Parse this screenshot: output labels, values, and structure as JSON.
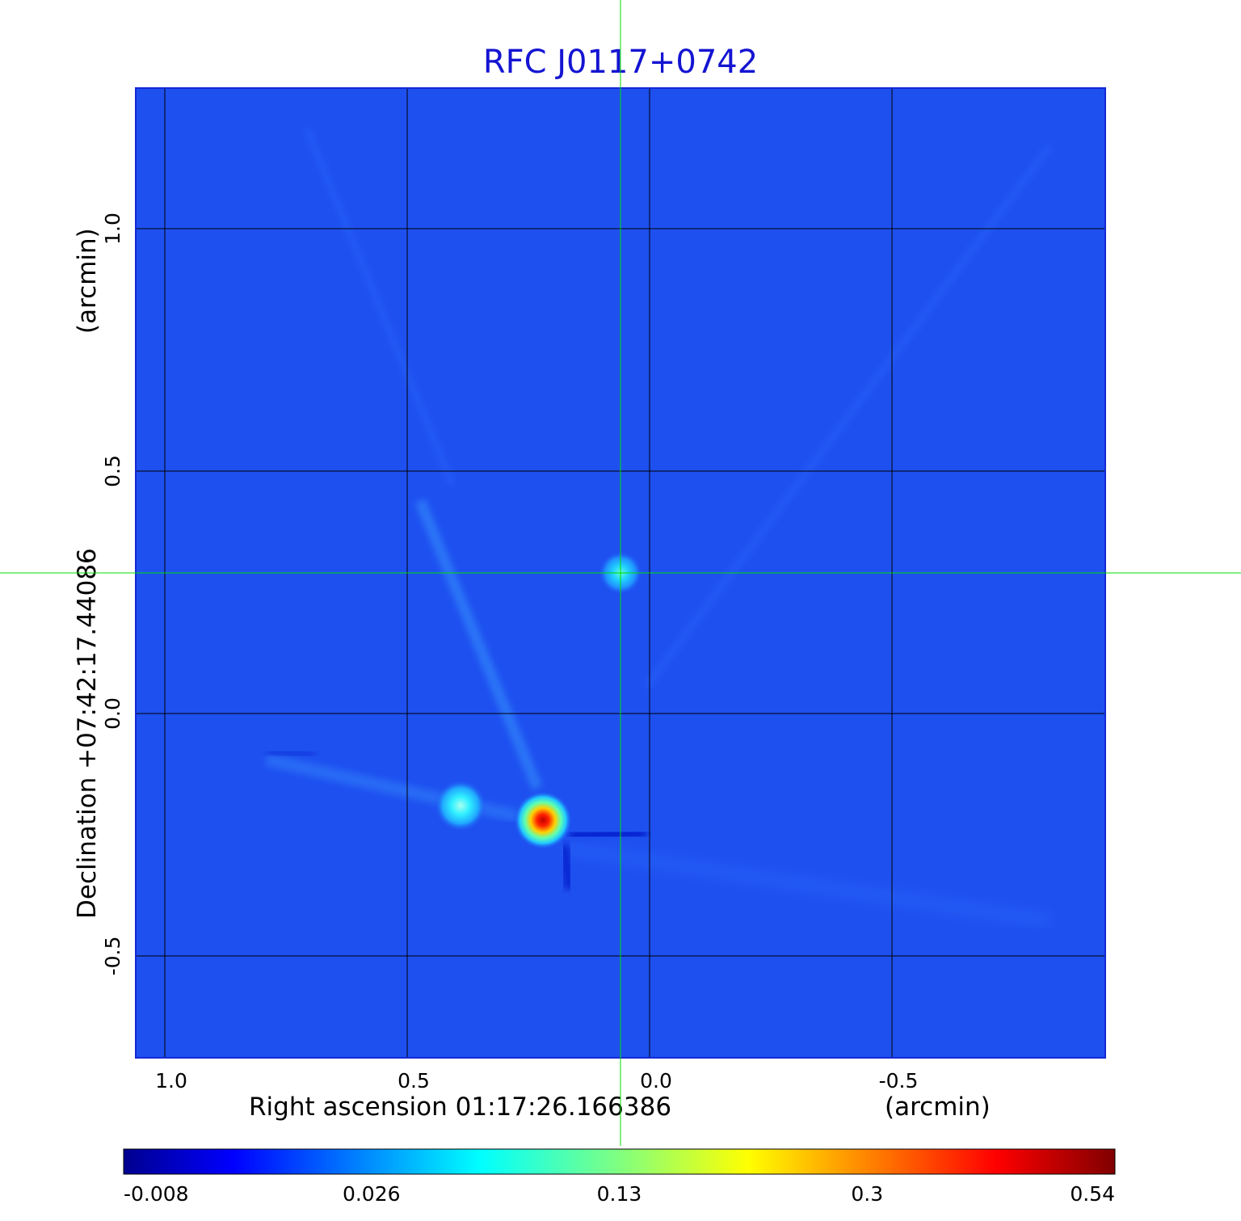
{
  "chart_data": {
    "type": "heatmap",
    "title": "RFC J0117+0742",
    "xlabel": "Right ascension  01:17:26.166386",
    "xunit": "(arcmin)",
    "ylabel": "Declination  +07:42:17.44086",
    "yunit": "(arcmin)",
    "x_ticks": [
      "1.0",
      "0.5",
      "0.0",
      "-0.5"
    ],
    "x_tick_values": [
      1.0,
      0.5,
      0.0,
      -0.5
    ],
    "y_ticks": [
      "1.0",
      "0.5",
      "0.0",
      "-0.5"
    ],
    "y_tick_values": [
      1.0,
      0.5,
      0.0,
      -0.5
    ],
    "xlim": [
      1.06,
      -0.94
    ],
    "ylim": [
      -0.71,
      1.29
    ],
    "grid": true,
    "colormap": "jet",
    "colorbar_ticks": [
      "-0.008",
      "0.026",
      "0.13",
      "0.3",
      "0.54"
    ],
    "background_color": "#1e50f0",
    "crosshair": {
      "x": 0.06,
      "y": 0.29,
      "color": "#00e000"
    },
    "sources": [
      {
        "x": 0.22,
        "y": -0.22,
        "peak": 0.54
      },
      {
        "x": 0.39,
        "y": -0.19,
        "peak": 0.14
      },
      {
        "x": 0.06,
        "y": 0.29,
        "peak": 0.13
      }
    ]
  }
}
